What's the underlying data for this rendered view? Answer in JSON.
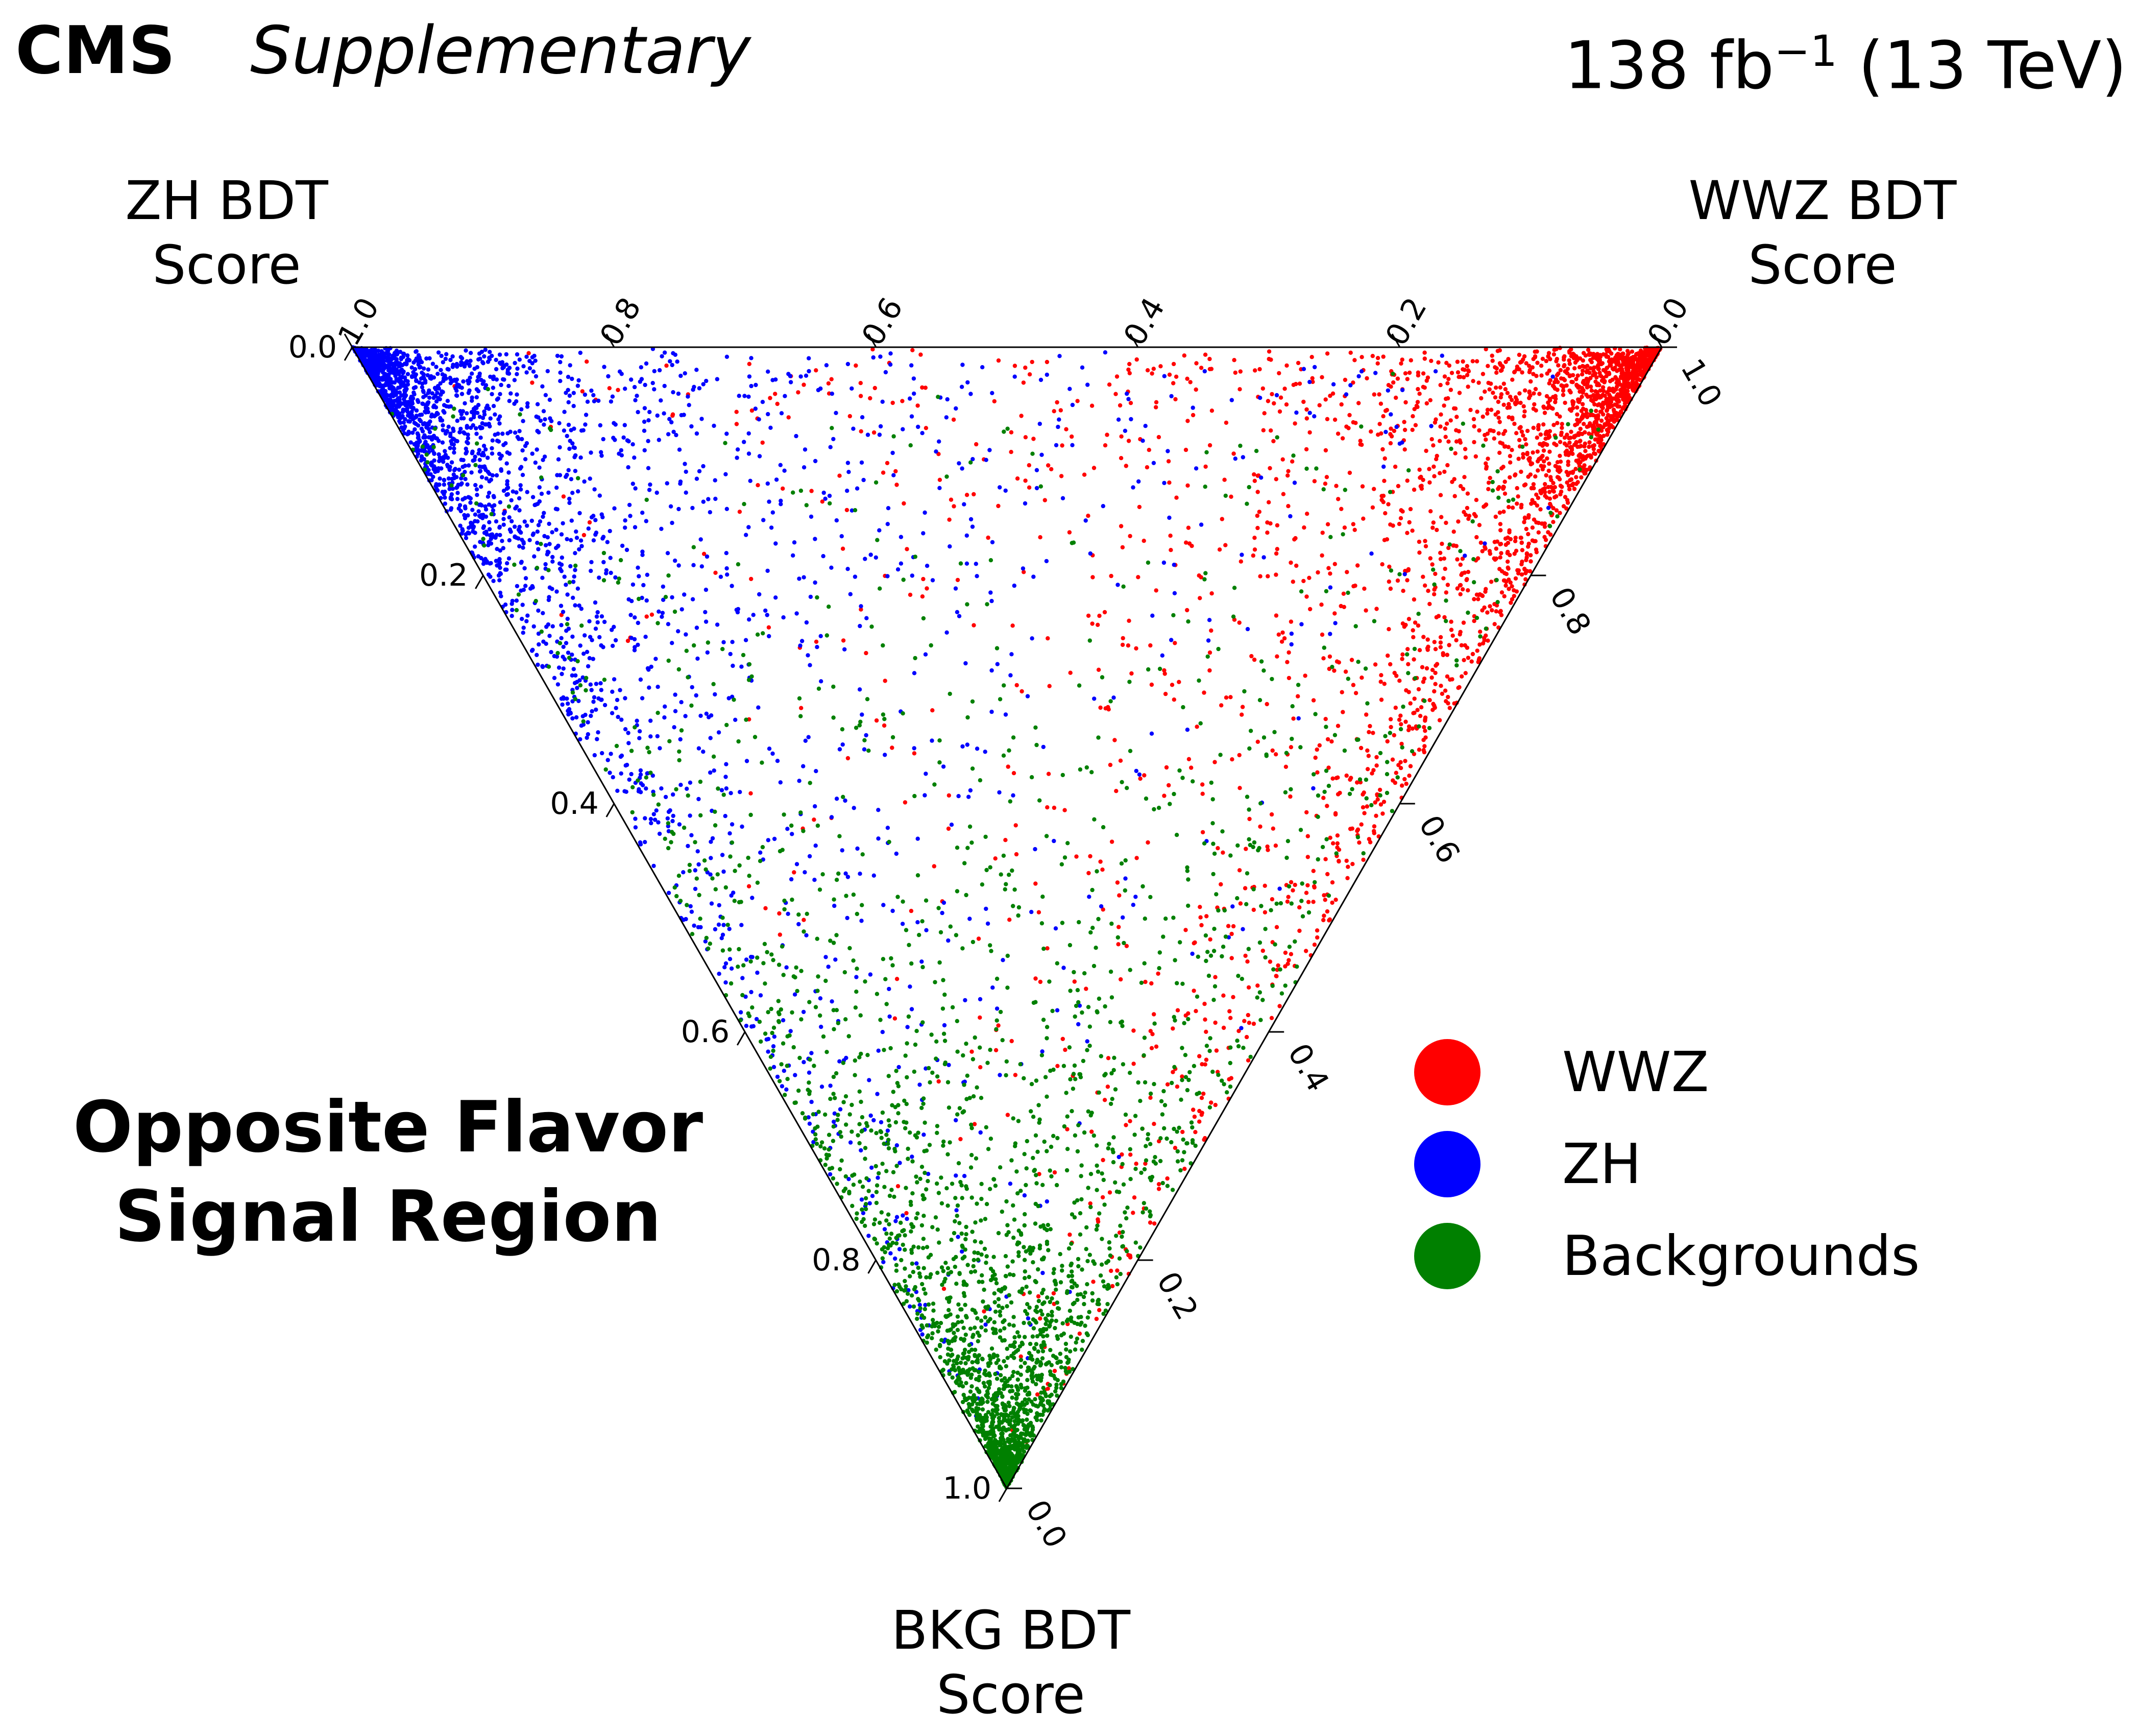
{
  "header": {
    "experiment": "CMS",
    "qualifier": "Supplementary",
    "lumi_prefix": "138 fb",
    "lumi_exponent": "−1",
    "lumi_suffix": " (13 TeV)"
  },
  "axes": {
    "zh": {
      "line1": "ZH BDT",
      "line2": "Score"
    },
    "wwz": {
      "line1": "WWZ BDT",
      "line2": "Score"
    },
    "bkg": {
      "line1": "BKG BDT",
      "line2": "Score"
    }
  },
  "region": {
    "line1": "Opposite Flavor",
    "line2": "Signal Region"
  },
  "legend": [
    {
      "label": "WWZ",
      "color": "#ff0000"
    },
    {
      "label": "ZH",
      "color": "#0000ff"
    },
    {
      "label": "Backgrounds",
      "color": "#008000"
    }
  ],
  "chart_data": {
    "type": "scatter",
    "coordinate_system": "ternary",
    "components": [
      "ZH BDT Score",
      "WWZ BDT Score",
      "BKG BDT Score"
    ],
    "ticks": [
      "0.0",
      "0.2",
      "0.4",
      "0.6",
      "0.8",
      "1.0"
    ],
    "range": [
      0,
      1
    ],
    "grid": false,
    "legend_position": "right",
    "series": [
      {
        "name": "WWZ",
        "color": "#ff0000",
        "cluster_center": {
          "zh": 0.05,
          "wwz": 0.85,
          "bkg": 0.1
        },
        "cluster_note": "concentrated at WWZ corner"
      },
      {
        "name": "ZH",
        "color": "#0000ff",
        "cluster_center": {
          "zh": 0.85,
          "wwz": 0.05,
          "bkg": 0.1
        },
        "cluster_note": "concentrated at ZH corner"
      },
      {
        "name": "Backgrounds",
        "color": "#008000",
        "cluster_center": {
          "zh": 0.08,
          "wwz": 0.07,
          "bkg": 0.85
        },
        "cluster_note": "concentrated at BKG corner and along lower edges"
      }
    ]
  }
}
